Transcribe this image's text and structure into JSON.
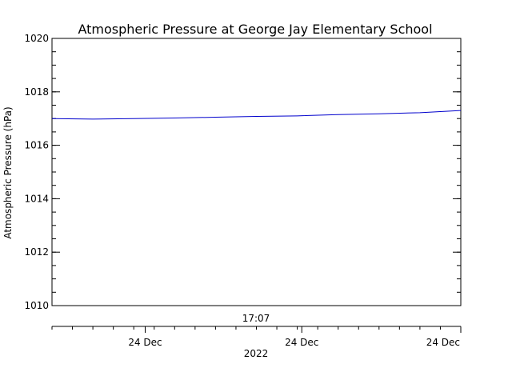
{
  "chart_data": {
    "type": "line",
    "title": "Atmospheric Pressure at George Jay Elementary School",
    "ylabel": "Atmospheric Pressure (hPa)",
    "ylim": [
      1010,
      1020
    ],
    "y_ticks": [
      "1010",
      "1012",
      "1014",
      "1016",
      "1018",
      "1020"
    ],
    "time_axis_label": "17:07",
    "x_ticks": [
      "24 Dec",
      "24 Dec",
      "24 Dec"
    ],
    "year_label": "2022",
    "grid": false,
    "series": [
      {
        "color": "#0000cc",
        "x": [
          0,
          0.1,
          0.2,
          0.3,
          0.4,
          0.5,
          0.6,
          0.7,
          0.8,
          0.9,
          1.0
        ],
        "values": [
          1017.0,
          1016.98,
          1017.0,
          1017.02,
          1017.05,
          1017.08,
          1017.1,
          1017.15,
          1017.18,
          1017.22,
          1017.3
        ]
      }
    ]
  }
}
